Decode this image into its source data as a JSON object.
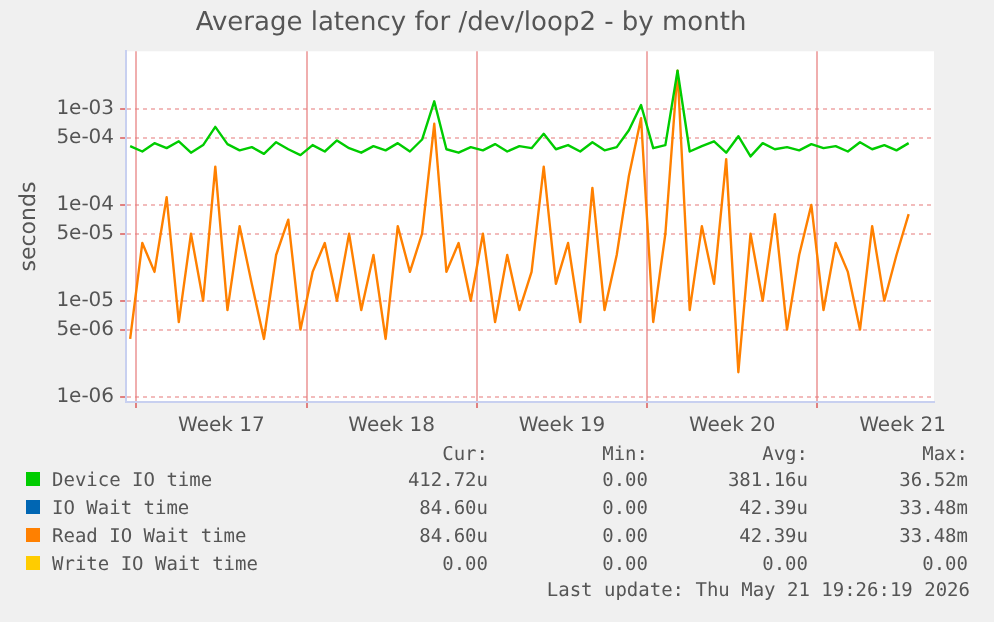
{
  "chart_data": {
    "type": "line",
    "title": "Average latency for /dev/loop2 - by month",
    "ylabel": "seconds",
    "log": "y",
    "grid": true,
    "legend": "bottom",
    "marker": "none",
    "line_style": "solid",
    "x": [
      "2026-04-19T18:00",
      "2026-04-20T06:00",
      "2026-04-20T18:00",
      "2026-04-21T06:00",
      "2026-04-21T18:00",
      "2026-04-22T06:00",
      "2026-04-22T18:00",
      "2026-04-23T06:00",
      "2026-04-23T18:00",
      "2026-04-24T06:00",
      "2026-04-24T18:00",
      "2026-04-25T06:00",
      "2026-04-25T18:00",
      "2026-04-26T06:00",
      "2026-04-26T18:00",
      "2026-04-27T06:00",
      "2026-04-27T18:00",
      "2026-04-28T06:00",
      "2026-04-28T18:00",
      "2026-04-29T06:00",
      "2026-04-29T18:00",
      "2026-04-30T06:00",
      "2026-04-30T18:00",
      "2026-05-01T06:00",
      "2026-05-01T18:00",
      "2026-05-02T06:00",
      "2026-05-02T18:00",
      "2026-05-03T06:00",
      "2026-05-03T18:00",
      "2026-05-04T06:00",
      "2026-05-04T18:00",
      "2026-05-05T06:00",
      "2026-05-05T18:00",
      "2026-05-06T06:00",
      "2026-05-06T18:00",
      "2026-05-07T06:00",
      "2026-05-07T18:00",
      "2026-05-08T06:00",
      "2026-05-08T18:00",
      "2026-05-09T06:00",
      "2026-05-09T18:00",
      "2026-05-10T06:00",
      "2026-05-10T18:00",
      "2026-05-11T06:00",
      "2026-05-11T18:00",
      "2026-05-12T06:00",
      "2026-05-12T18:00",
      "2026-05-13T06:00",
      "2026-05-13T18:00",
      "2026-05-14T06:00",
      "2026-05-14T18:00",
      "2026-05-15T06:00",
      "2026-05-15T18:00",
      "2026-05-16T06:00",
      "2026-05-16T18:00",
      "2026-05-17T06:00",
      "2026-05-17T18:00",
      "2026-05-18T06:00",
      "2026-05-18T18:00",
      "2026-05-19T06:00",
      "2026-05-19T18:00",
      "2026-05-20T06:00",
      "2026-05-20T18:00",
      "2026-05-21T06:00",
      "2026-05-21T18:00"
    ],
    "xlim": [
      "2026-04-19T14:00",
      "2026-05-22T19:00"
    ],
    "xticks": [
      {
        "value": "2026-04-20",
        "label": null
      },
      {
        "value": "2026-04-23T12:00",
        "label": "Week 17"
      },
      {
        "value": "2026-04-27",
        "label": null
      },
      {
        "value": "2026-04-30T12:00",
        "label": "Week 18"
      },
      {
        "value": "2026-05-04",
        "label": null
      },
      {
        "value": "2026-05-07T12:00",
        "label": "Week 19"
      },
      {
        "value": "2026-05-11",
        "label": null
      },
      {
        "value": "2026-05-14T12:00",
        "label": "Week 20"
      },
      {
        "value": "2026-05-18",
        "label": null
      },
      {
        "value": "2026-05-21T12:00",
        "label": "Week 21"
      }
    ],
    "ylim": [
      8.8e-07,
      0.004
    ],
    "yticks": [
      {
        "value": 1e-06,
        "label": "1e-06"
      },
      {
        "value": 5e-06,
        "label": "5e-06"
      },
      {
        "value": 1e-05,
        "label": "1e-05"
      },
      {
        "value": 5e-05,
        "label": "5e-05"
      },
      {
        "value": 0.0001,
        "label": "1e-04"
      },
      {
        "value": 0.0005,
        "label": "5e-04"
      },
      {
        "value": 0.001,
        "label": "1e-03"
      }
    ],
    "series": [
      {
        "name": "Device IO time",
        "color": "#00cc00",
        "values": [
          0.00041,
          0.00036,
          0.00044,
          0.00039,
          0.00046,
          0.00035,
          0.00042,
          0.00065,
          0.00043,
          0.00037,
          0.0004,
          0.00034,
          0.00045,
          0.00038,
          0.00033,
          0.00042,
          0.00036,
          0.00047,
          0.00039,
          0.00035,
          0.00041,
          0.00037,
          0.00044,
          0.00036,
          0.00048,
          0.0012,
          0.00038,
          0.00035,
          0.0004,
          0.00037,
          0.00043,
          0.00036,
          0.00041,
          0.00039,
          0.00055,
          0.00038,
          0.00042,
          0.00036,
          0.00045,
          0.00037,
          0.0004,
          0.0006,
          0.0011,
          0.00039,
          0.00042,
          0.0025,
          0.00036,
          0.00041,
          0.00046,
          0.00035,
          0.00052,
          0.00032,
          0.00044,
          0.00038,
          0.0004,
          0.00037,
          0.00043,
          0.00039,
          0.00041,
          0.00036,
          0.00045,
          0.00038,
          0.00042,
          0.00037,
          0.00044
        ]
      },
      {
        "name": "IO Wait time",
        "color": "#0066b3",
        "values": [
          null,
          null,
          null,
          null,
          null,
          null,
          null,
          null,
          null,
          null,
          null,
          null,
          null,
          null,
          null,
          null,
          null,
          null,
          null,
          null,
          null,
          null,
          null,
          null,
          null,
          null,
          null,
          null,
          null,
          null,
          null,
          null,
          null,
          null,
          null,
          null,
          null,
          null,
          null,
          null,
          null,
          null,
          null,
          null,
          null,
          null,
          null,
          null,
          null,
          null,
          null,
          null,
          null,
          null,
          null,
          null,
          null,
          null,
          null,
          null,
          null,
          null,
          null,
          null,
          null
        ]
      },
      {
        "name": "Read IO Wait time",
        "color": "#ff8000",
        "values": [
          4e-06,
          4e-05,
          2e-05,
          0.00012,
          6e-06,
          5e-05,
          1e-05,
          0.00025,
          8e-06,
          6e-05,
          1.5e-05,
          4e-06,
          3e-05,
          7e-05,
          5e-06,
          2e-05,
          4e-05,
          1e-05,
          5e-05,
          8e-06,
          3e-05,
          4e-06,
          6e-05,
          2e-05,
          5e-05,
          0.0007,
          2e-05,
          4e-05,
          1e-05,
          5e-05,
          6e-06,
          3e-05,
          8e-06,
          2e-05,
          0.00025,
          1.5e-05,
          4e-05,
          6e-06,
          0.00015,
          8e-06,
          3e-05,
          0.0002,
          0.0008,
          6e-06,
          5e-05,
          0.0025,
          8e-06,
          6e-05,
          1.5e-05,
          0.0003,
          1.8e-06,
          5e-05,
          1e-05,
          8e-05,
          5e-06,
          3e-05,
          0.0001,
          8e-06,
          4e-05,
          2e-05,
          5e-06,
          6e-05,
          1e-05,
          3e-05,
          8e-05
        ]
      },
      {
        "name": "Write IO Wait time",
        "color": "#ffcc00",
        "values": [
          null,
          null,
          null,
          null,
          null,
          null,
          null,
          null,
          null,
          null,
          null,
          null,
          null,
          null,
          null,
          null,
          null,
          null,
          null,
          null,
          null,
          null,
          null,
          null,
          null,
          null,
          null,
          null,
          null,
          null,
          null,
          null,
          null,
          null,
          null,
          null,
          null,
          null,
          null,
          null,
          null,
          null,
          null,
          null,
          null,
          null,
          null,
          null,
          null,
          null,
          null,
          null,
          null,
          null,
          null,
          null,
          null,
          null,
          null,
          null,
          null,
          null,
          null,
          null,
          null
        ]
      }
    ],
    "annotations": [
      "Cur:",
      "Min:",
      "Avg:",
      "Max:",
      "412.72u",
      "0.00",
      "381.16u",
      "36.52m",
      "84.60u",
      "0.00",
      "42.39u",
      "33.48m",
      "84.60u",
      "0.00",
      "42.39u",
      "33.48m",
      "0.00",
      "0.00",
      "0.00",
      "0.00",
      "Last update: Thu May 21 19:26:19 2026"
    ]
  }
}
